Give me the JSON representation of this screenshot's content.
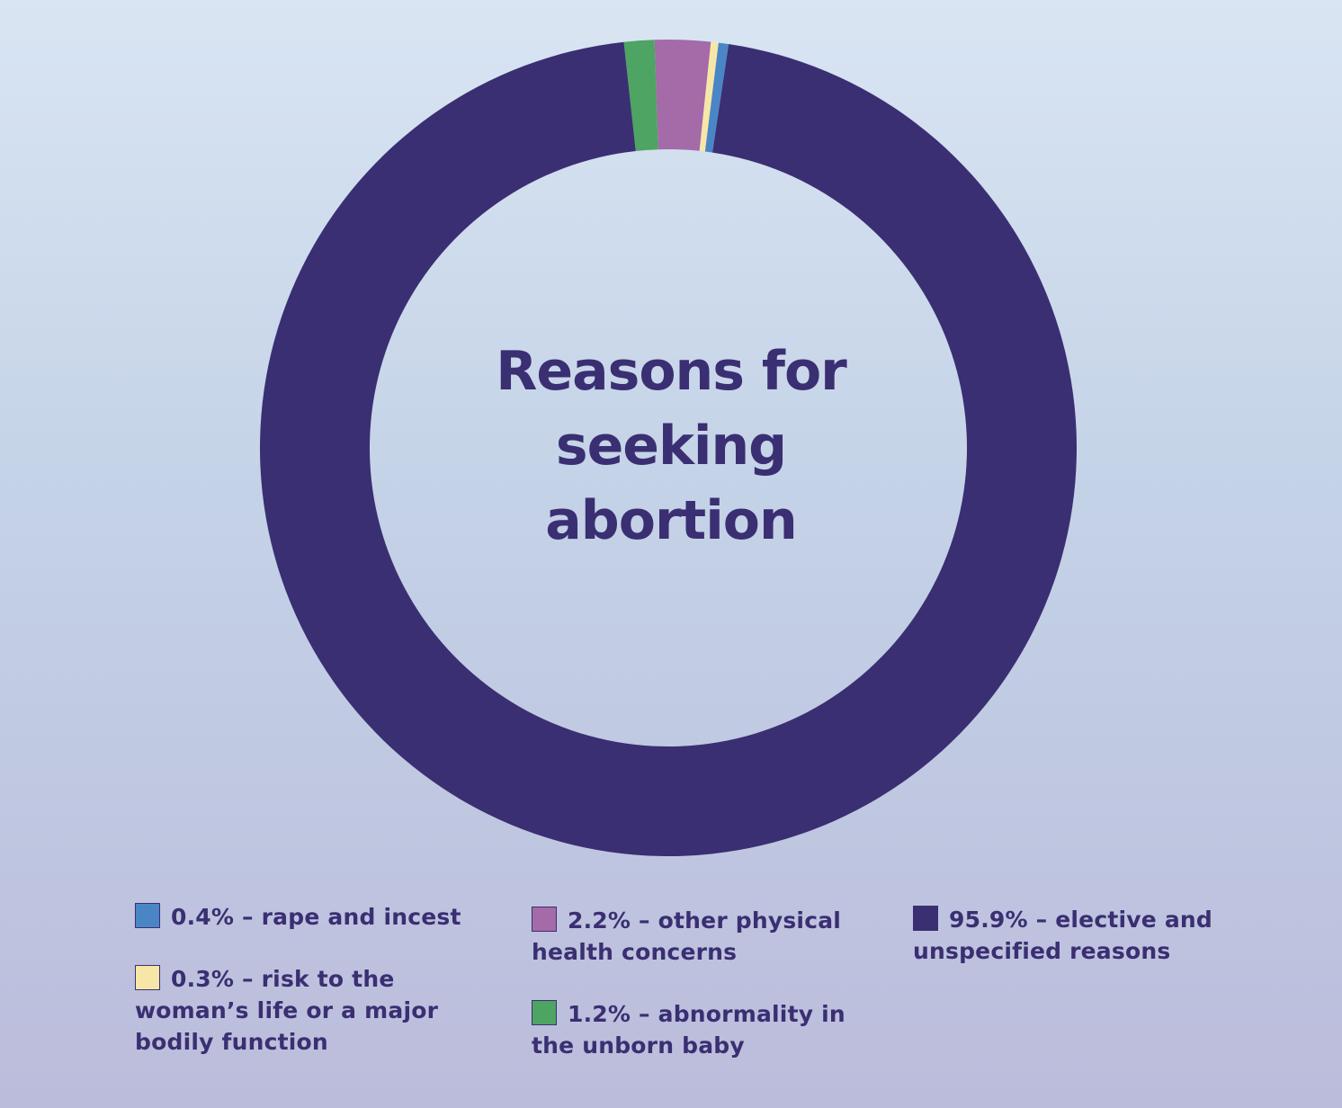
{
  "chart_data": {
    "type": "pie",
    "style": "donut",
    "title_lines": [
      "Reasons for",
      "seeking",
      "abortion"
    ],
    "slices": [
      {
        "label_lines": [
          "0.4% – rape and incest"
        ],
        "value": 0.4,
        "color": "#4a86c6"
      },
      {
        "label_lines": [
          "0.3% – risk to the",
          "woman’s life or a major",
          "bodily function"
        ],
        "value": 0.3,
        "color": "#f7e7a6"
      },
      {
        "label_lines": [
          "2.2% – other physical",
          "health concerns"
        ],
        "value": 2.2,
        "color": "#a56aa8"
      },
      {
        "label_lines": [
          "1.2% – abnormality in",
          "the unborn baby"
        ],
        "value": 1.2,
        "color": "#4ea463"
      },
      {
        "label_lines": [
          "95.9% – elective and",
          "unspecified reasons"
        ],
        "value": 95.9,
        "color": "#3a2f72"
      }
    ],
    "legend_position": "bottom"
  }
}
